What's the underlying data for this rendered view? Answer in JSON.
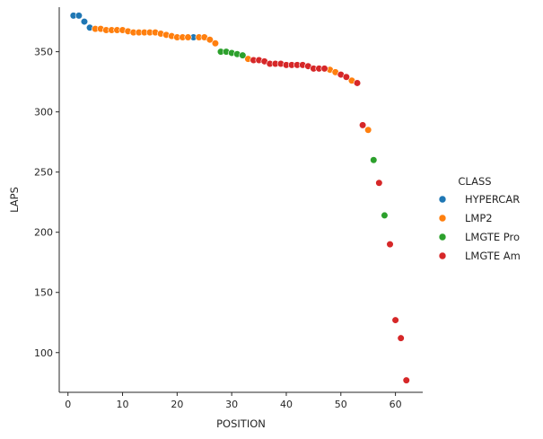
{
  "chart_data": {
    "type": "scatter",
    "xlabel": "POSITION",
    "ylabel": "LAPS",
    "xlim": [
      -1.6,
      65
    ],
    "ylim": [
      67,
      387
    ],
    "x_ticks": [
      0,
      10,
      20,
      30,
      40,
      50,
      60
    ],
    "y_ticks": [
      100,
      150,
      200,
      250,
      300,
      350
    ],
    "grid": false,
    "legend": {
      "title": "CLASS",
      "placement": "right"
    },
    "series": [
      {
        "name": "HYPERCAR",
        "color": "#1f77b4",
        "points": [
          [
            1,
            380
          ],
          [
            2,
            380
          ],
          [
            3,
            375
          ],
          [
            4,
            370
          ],
          [
            23,
            362
          ]
        ]
      },
      {
        "name": "LMP2",
        "color": "#ff7f0e",
        "points": [
          [
            5,
            369
          ],
          [
            6,
            369
          ],
          [
            7,
            368
          ],
          [
            8,
            368
          ],
          [
            9,
            368
          ],
          [
            10,
            368
          ],
          [
            11,
            367
          ],
          [
            12,
            366
          ],
          [
            13,
            366
          ],
          [
            14,
            366
          ],
          [
            15,
            366
          ],
          [
            16,
            366
          ],
          [
            17,
            365
          ],
          [
            18,
            364
          ],
          [
            19,
            363
          ],
          [
            20,
            362
          ],
          [
            21,
            362
          ],
          [
            22,
            362
          ],
          [
            24,
            362
          ],
          [
            25,
            362
          ],
          [
            26,
            360
          ],
          [
            27,
            357
          ],
          [
            33,
            344
          ],
          [
            48,
            335
          ],
          [
            49,
            333
          ],
          [
            52,
            326
          ],
          [
            55,
            285
          ]
        ]
      },
      {
        "name": "LMGTE Pro",
        "color": "#2ca02c",
        "points": [
          [
            28,
            350
          ],
          [
            29,
            350
          ],
          [
            30,
            349
          ],
          [
            31,
            348
          ],
          [
            32,
            347
          ],
          [
            56,
            260
          ],
          [
            58,
            214
          ]
        ]
      },
      {
        "name": "LMGTE Am",
        "color": "#d62728",
        "points": [
          [
            34,
            343
          ],
          [
            35,
            343
          ],
          [
            36,
            342
          ],
          [
            37,
            340
          ],
          [
            38,
            340
          ],
          [
            39,
            340
          ],
          [
            40,
            339
          ],
          [
            41,
            339
          ],
          [
            42,
            339
          ],
          [
            43,
            339
          ],
          [
            44,
            338
          ],
          [
            45,
            336
          ],
          [
            46,
            336
          ],
          [
            47,
            336
          ],
          [
            50,
            331
          ],
          [
            51,
            329
          ],
          [
            53,
            324
          ],
          [
            54,
            289
          ],
          [
            57,
            241
          ],
          [
            59,
            190
          ],
          [
            60,
            127
          ],
          [
            61,
            112
          ],
          [
            62,
            77
          ]
        ]
      }
    ]
  }
}
